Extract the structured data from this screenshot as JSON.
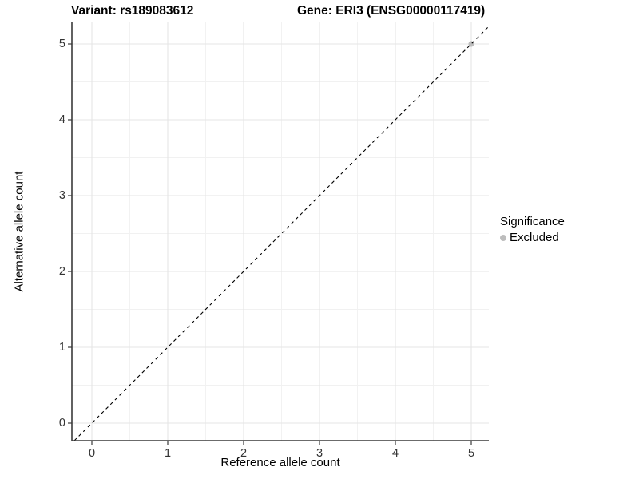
{
  "titles": {
    "variant": "Variant: rs189083612",
    "gene": "Gene: ERI3 (ENSG00000117419)"
  },
  "chart_data": {
    "type": "scatter",
    "title_left": "Variant: rs189083612",
    "title_right": "Gene: ERI3 (ENSG00000117419)",
    "xlabel": "Reference allele count",
    "ylabel": "Alternative allele count",
    "xlim": [
      -0.26,
      5.23
    ],
    "ylim": [
      -0.23,
      5.26
    ],
    "xticks": [
      0,
      1,
      2,
      3,
      4,
      5
    ],
    "yticks": [
      0,
      1,
      2,
      3,
      4,
      5
    ],
    "minor_ticks": [
      0.5,
      1.5,
      2.5,
      3.5,
      4.5
    ],
    "grid": "major+minor",
    "reference_line": {
      "type": "identity y=x",
      "style": "dashed",
      "color": "#000000"
    },
    "series": [
      {
        "name": "Excluded",
        "color": "#bdbdbd",
        "points": [
          {
            "x": 5,
            "y": 5
          }
        ]
      }
    ],
    "legend": {
      "position": "right",
      "title": "Significance",
      "entries": [
        {
          "label": "Excluded",
          "color": "#bdbdbd"
        }
      ]
    },
    "colors": {
      "panel_background": "#ffffff",
      "grid_major": "#e5e5e5",
      "grid_minor": "#f1f1f1",
      "axis_line": "#3a3a3a",
      "tick_mark": "#3a3a3a",
      "tick_text": "#333333",
      "point": "#bdbdbd"
    }
  }
}
